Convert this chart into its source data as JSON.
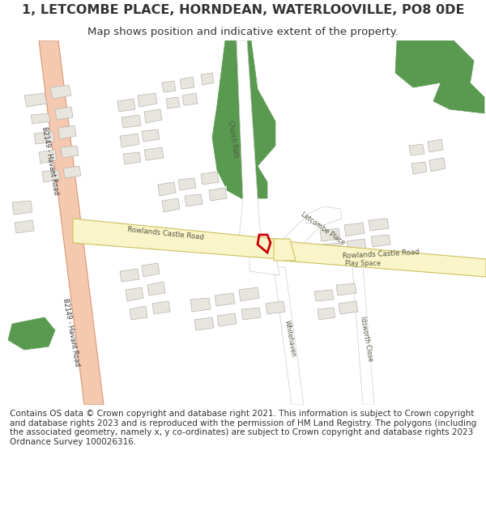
{
  "title": "1, LETCOMBE PLACE, HORNDEAN, WATERLOOVILLE, PO8 0DE",
  "subtitle": "Map shows position and indicative extent of the property.",
  "footer": "Contains OS data © Crown copyright and database right 2021. This information is subject to Crown copyright and database rights 2023 and is reproduced with the permission of HM Land Registry. The polygons (including the associated geometry, namely x, y co-ordinates) are subject to Crown copyright and database rights 2023 Ordnance Survey 100026316.",
  "bg_color": "#ffffff",
  "map_bg": "#f8f8f6",
  "road_yellow_fill": "#faf5c8",
  "road_yellow_border": "#ccc060",
  "road_pink_fill": "#f5c8b0",
  "road_pink_border": "#d89878",
  "green_fill": "#5a9a50",
  "building_fill": "#e8e4de",
  "building_border": "#b8b4ae",
  "plot_color": "#cc0000",
  "text_color": "#333333",
  "road_text_color": "#555544",
  "title_fontsize": 11.5,
  "subtitle_fontsize": 9.5,
  "footer_fontsize": 7.5,
  "road_label_fontsize": 6.0,
  "street_label_fontsize": 5.5
}
